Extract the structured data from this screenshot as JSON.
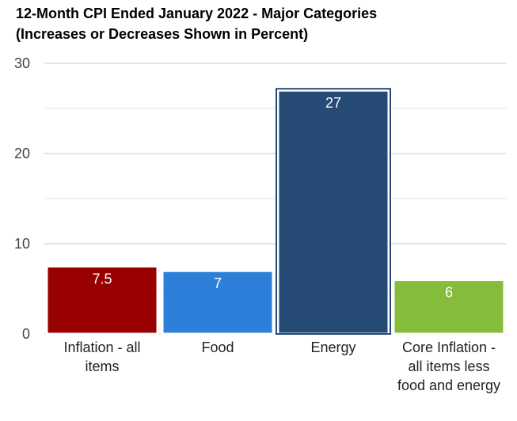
{
  "chart_data": {
    "type": "bar",
    "title_line1": "12-Month CPI Ended January 2022 - Major Categories",
    "title_line2": "(Increases or Decreases Shown in Percent)",
    "categories": [
      "Inflation - all items",
      "Food",
      "Energy",
      "Core Inflation - all items less food and energy"
    ],
    "values": [
      7.5,
      7,
      27,
      6
    ],
    "data_labels": [
      "7.5",
      "7",
      "27",
      "6"
    ],
    "colors": [
      "#990000",
      "#2e7fd9",
      "#244a75",
      "#86bc3b"
    ],
    "ylim": [
      0,
      30
    ],
    "yticks": [
      0,
      10,
      20,
      30
    ],
    "grid": true,
    "legend": "none",
    "xlabel": "",
    "ylabel": ""
  }
}
